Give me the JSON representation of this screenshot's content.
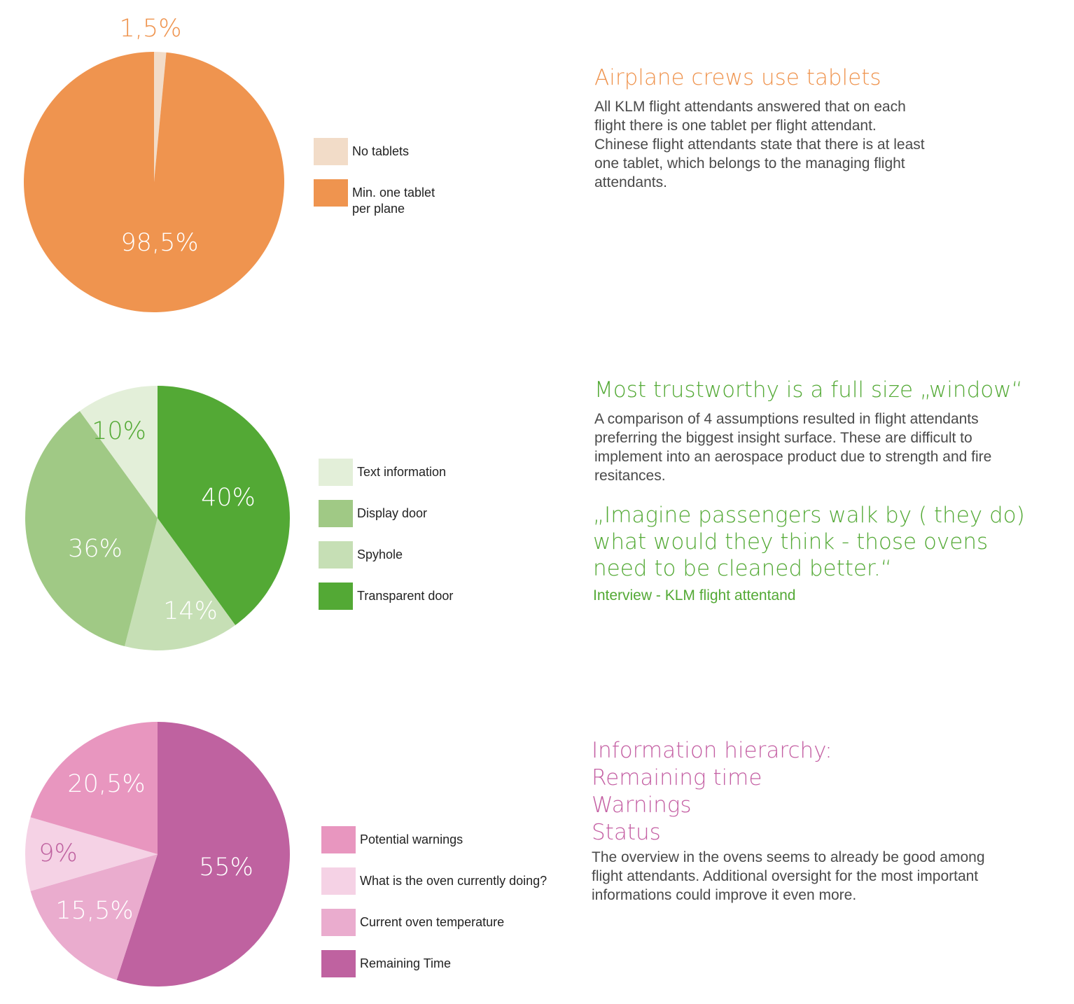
{
  "colors": {
    "orange_dark": "#EF944F",
    "orange_light": "#F2DCC8",
    "green_dark": "#53A935",
    "green_mid": "#A0C985",
    "green_light_a": "#E3EFD9",
    "green_light_b": "#C6DFB5",
    "pink_dark": "#BF62A0",
    "pink_mid": "#E896BF",
    "pink_light_a": "#F5D2E5",
    "pink_light_b": "#EAACCE",
    "text_orange": "#EF944F",
    "text_green": "#53A935",
    "text_pink": "#C45FA3"
  },
  "chart_data": [
    {
      "type": "pie",
      "slices": [
        {
          "label": "No tablets",
          "value": 1.5,
          "display": "1,5%",
          "color": "#F2DCC8"
        },
        {
          "label": "Min. one tablet per plane",
          "value": 98.5,
          "display": "98,5%",
          "color": "#EF944F"
        }
      ],
      "legend": [
        {
          "label": "No tablets",
          "color": "#F2DCC8"
        },
        {
          "label": "Min. one tablet\nper plane",
          "color": "#EF944F"
        }
      ],
      "legend_position": "right"
    },
    {
      "type": "pie",
      "slices": [
        {
          "label": "Transparent door",
          "value": 40,
          "display": "40%",
          "color": "#53A935"
        },
        {
          "label": "Spyhole",
          "value": 14,
          "display": "14%",
          "color": "#C6DFB5"
        },
        {
          "label": "Display door",
          "value": 36,
          "display": "36%",
          "color": "#A0C985"
        },
        {
          "label": "Text information",
          "value": 10,
          "display": "10%",
          "color": "#E3EFD9"
        }
      ],
      "legend": [
        {
          "label": "Text information",
          "color": "#E3EFD9"
        },
        {
          "label": "Display door",
          "color": "#A0C985"
        },
        {
          "label": "Spyhole",
          "color": "#C6DFB5"
        },
        {
          "label": "Transparent door",
          "color": "#53A935"
        }
      ],
      "legend_position": "right"
    },
    {
      "type": "pie",
      "slices": [
        {
          "label": "Remaining Time",
          "value": 55,
          "display": "55%",
          "color": "#BF62A0"
        },
        {
          "label": "Current oven temperature",
          "value": 15.5,
          "display": "15,5%",
          "color": "#EAACCE"
        },
        {
          "label": "What is the oven currently doing?",
          "value": 9,
          "display": "9%",
          "color": "#F5D2E5"
        },
        {
          "label": "Potential warnings",
          "value": 20.5,
          "display": "20,5%",
          "color": "#E896BF"
        }
      ],
      "legend": [
        {
          "label": "Potential warnings",
          "color": "#E896BF"
        },
        {
          "label": "What is the oven currently doing?",
          "color": "#F5D2E5"
        },
        {
          "label": "Current oven temperature",
          "color": "#EAACCE"
        },
        {
          "label": "Remaining Time",
          "color": "#BF62A0"
        }
      ],
      "legend_position": "right"
    }
  ],
  "sections": [
    {
      "heading": [
        "Airplane crews use tablets"
      ],
      "body": "All KLM flight attendants answered that on each flight there is one tablet per flight attendant. Chinese flight attendants state that there is at least one tablet, which belongs to the managing flight attendants."
    },
    {
      "heading": [
        "Most trustworthy is a full size „window“"
      ],
      "body": "A comparison of 4 assumptions resulted in flight attendants preferring the biggest insight surface. These are difficult to implement into an aerospace product due to strength and fire resitances.",
      "quote": "„Imagine passengers walk by ( they do) what would they think - those ovens need to be cleaned better.“",
      "attribution": "Interview - KLM flight attentand"
    },
    {
      "heading": [
        "Information hierarchy:",
        "Remaining time",
        "Warnings",
        "Status"
      ],
      "body": "The overview in the ovens seems to already be good among flight attendants. Additional oversight for the most important informations could improve it even more."
    }
  ]
}
